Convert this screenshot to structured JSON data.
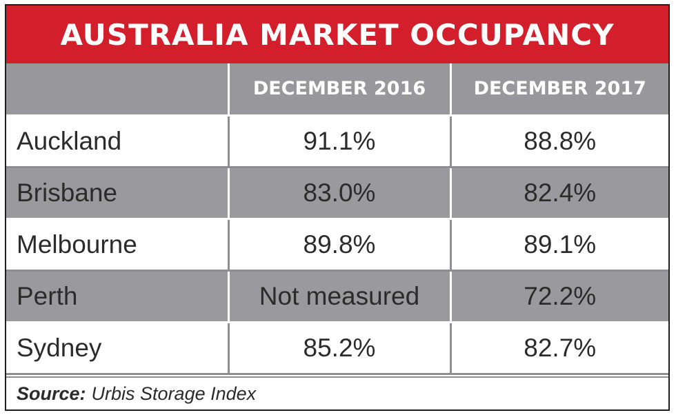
{
  "chart_data": {
    "type": "table",
    "title": "AUSTRALIA MARKET OCCUPANCY",
    "columns": [
      "",
      "DECEMBER 2016",
      "DECEMBER 2017"
    ],
    "rows": [
      {
        "city": "Auckland",
        "dec_2016": "91.1%",
        "dec_2017": "88.8%"
      },
      {
        "city": "Brisbane",
        "dec_2016": "83.0%",
        "dec_2017": "82.4%"
      },
      {
        "city": "Melbourne",
        "dec_2016": "89.8%",
        "dec_2017": "89.1%"
      },
      {
        "city": "Perth",
        "dec_2016": "Not measured",
        "dec_2017": "72.2%"
      },
      {
        "city": "Sydney",
        "dec_2016": "85.2%",
        "dec_2017": "82.7%"
      }
    ],
    "source_label": "Source:",
    "source_text": "Urbis Storage Index"
  },
  "colors": {
    "title_bg": "#d21f2b",
    "header_bg": "#97979c",
    "stripe_bg": "#9a9a9e"
  }
}
